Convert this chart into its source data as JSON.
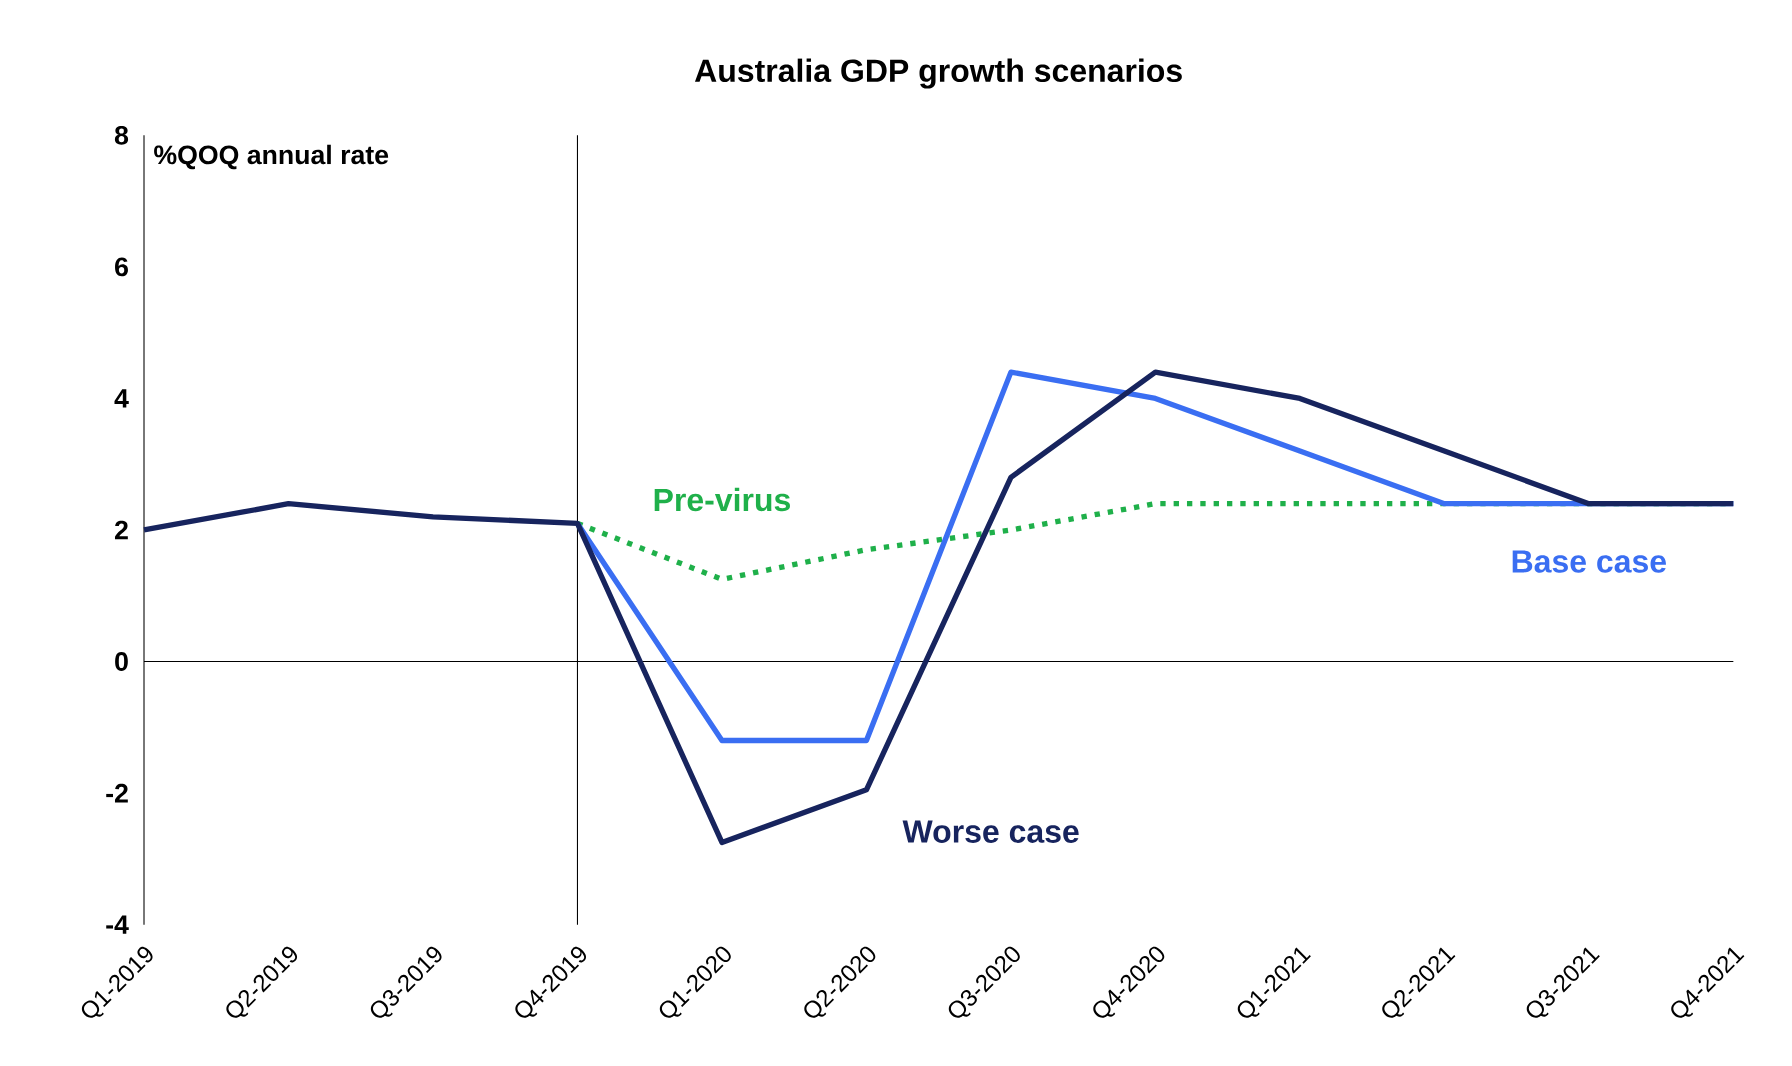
{
  "chart_data": {
    "type": "line",
    "title": "Australia GDP growth scenarios",
    "annotations": [
      "%QOQ annual rate"
    ],
    "categories": [
      "Q1-2019",
      "Q2-2019",
      "Q3-2019",
      "Q4-2019",
      "Q1-2020",
      "Q2-2020",
      "Q3-2020",
      "Q4-2020",
      "Q1-2021",
      "Q2-2021",
      "Q3-2021",
      "Q4-2021"
    ],
    "series": [
      {
        "name": "Pre-virus",
        "color": "#1fb04a",
        "line_style": "dotted",
        "values": [
          null,
          null,
          null,
          2.1,
          1.25,
          1.7,
          2.0,
          2.4,
          2.4,
          2.4,
          2.4,
          2.4
        ]
      },
      {
        "name": "Base case",
        "color": "#3a6ef2",
        "line_style": "solid",
        "values": [
          null,
          null,
          null,
          2.1,
          -1.2,
          -1.2,
          4.4,
          4.0,
          3.2,
          2.4,
          2.4,
          2.4
        ]
      },
      {
        "name": "Worse case",
        "color": "#17245e",
        "line_style": "solid",
        "values": [
          2.0,
          2.4,
          2.2,
          2.1,
          -2.75,
          -1.95,
          2.8,
          4.4,
          4.0,
          3.2,
          2.4,
          2.4
        ]
      }
    ],
    "ylim": [
      -4,
      8
    ],
    "yticks": [
      -4,
      -2,
      0,
      2,
      4,
      6,
      8
    ],
    "ref_lines": [
      {
        "axis": "x",
        "value": "Q4-2019",
        "color": "#000000"
      },
      {
        "axis": "y",
        "value": 0,
        "color": "#000000"
      }
    ],
    "grid": false,
    "marker": "none"
  }
}
